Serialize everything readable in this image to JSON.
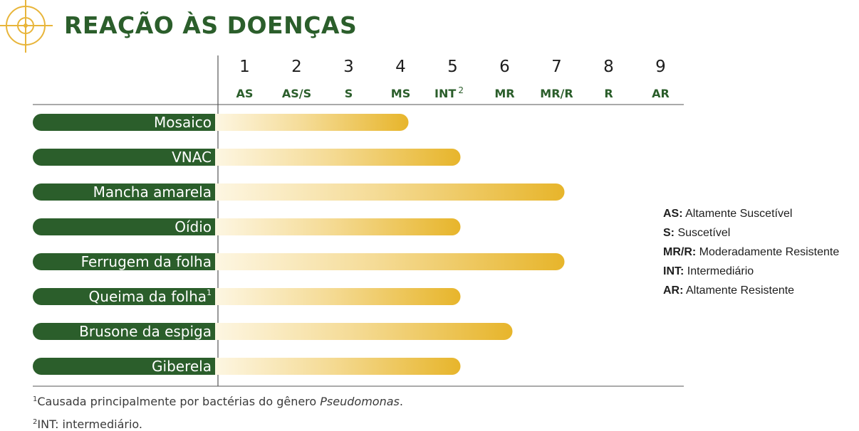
{
  "title": "REAÇÃO ÀS DOENÇAS",
  "colors": {
    "brand_green": "#2b5e2b",
    "bar_gold": "#e7b52b",
    "bar_light": "#fbeec9",
    "icon_gold": "#e8b53a"
  },
  "icons": {
    "title_icon": "target-crosshair-icon"
  },
  "chart_data": {
    "type": "bar",
    "orientation": "horizontal",
    "scale": {
      "numbers": [
        "1",
        "2",
        "3",
        "4",
        "5",
        "6",
        "7",
        "8",
        "9"
      ],
      "codes": [
        "AS",
        "AS/S",
        "S",
        "MS",
        "INT",
        "MR",
        "MR/R",
        "R",
        "AR"
      ],
      "superscript_on_index": 4,
      "superscript": "2"
    },
    "xlim": [
      0,
      9
    ],
    "categories": [
      {
        "label": "Mosaico",
        "sup": ""
      },
      {
        "label": "VNAC",
        "sup": ""
      },
      {
        "label": "Mancha amarela",
        "sup": ""
      },
      {
        "label": "Oídio",
        "sup": ""
      },
      {
        "label": "Ferrugem da folha",
        "sup": ""
      },
      {
        "label": "Queima da folha",
        "sup": "1"
      },
      {
        "label": "Brusone da espiga",
        "sup": ""
      },
      {
        "label": "Giberela",
        "sup": ""
      }
    ],
    "values": [
      4,
      5,
      7,
      5,
      7,
      5,
      6,
      5
    ]
  },
  "legend": [
    {
      "abbr": "AS:",
      "text": "Altamente Suscetível"
    },
    {
      "abbr": "S:",
      "text": "Suscetível"
    },
    {
      "abbr": "MR/R:",
      "text": "Moderadamente Resistente"
    },
    {
      "abbr": "INT:",
      "text": "Intermediário"
    },
    {
      "abbr": "AR:",
      "text": "Altamente Resistente"
    }
  ],
  "footnotes": [
    {
      "mark": "1",
      "text": "Causada principalmente por bactérias do gênero ",
      "italic": "Pseudomonas",
      "end": "."
    },
    {
      "mark": "2",
      "text": "INT: intermediário.",
      "italic": "",
      "end": ""
    }
  ]
}
